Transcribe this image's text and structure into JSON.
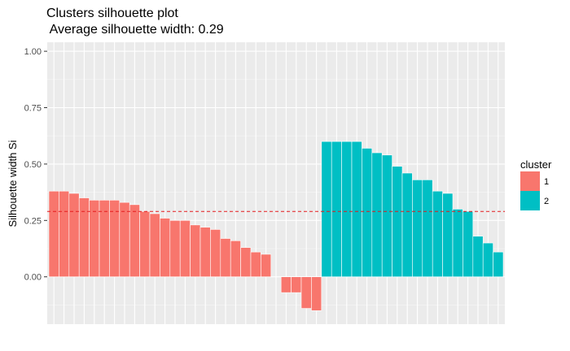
{
  "chart_data": {
    "type": "bar",
    "title": "Clusters silhouette plot",
    "subtitle": " Average silhouette width: 0.29",
    "xlabel": "",
    "ylabel": "Silhouette width Si",
    "ylim": [
      -0.21,
      1.04
    ],
    "yticks": [
      "0.00",
      "0.25",
      "0.50",
      "0.75",
      "1.00"
    ],
    "grid": true,
    "legend": {
      "title": "cluster",
      "placement": "right"
    },
    "average_line": 0.29,
    "series": [
      {
        "name": "1",
        "color": "#F8766D",
        "values": [
          0.38,
          0.38,
          0.37,
          0.35,
          0.34,
          0.34,
          0.34,
          0.33,
          0.32,
          0.29,
          0.28,
          0.26,
          0.25,
          0.25,
          0.23,
          0.22,
          0.21,
          0.17,
          0.16,
          0.13,
          0.11,
          0.1,
          0.0,
          -0.07,
          -0.07,
          -0.14,
          -0.15
        ]
      },
      {
        "name": "2",
        "color": "#00BFC4",
        "values": [
          0.6,
          0.6,
          0.6,
          0.6,
          0.57,
          0.55,
          0.54,
          0.49,
          0.46,
          0.43,
          0.43,
          0.38,
          0.37,
          0.3,
          0.29,
          0.18,
          0.15,
          0.11
        ]
      }
    ]
  }
}
